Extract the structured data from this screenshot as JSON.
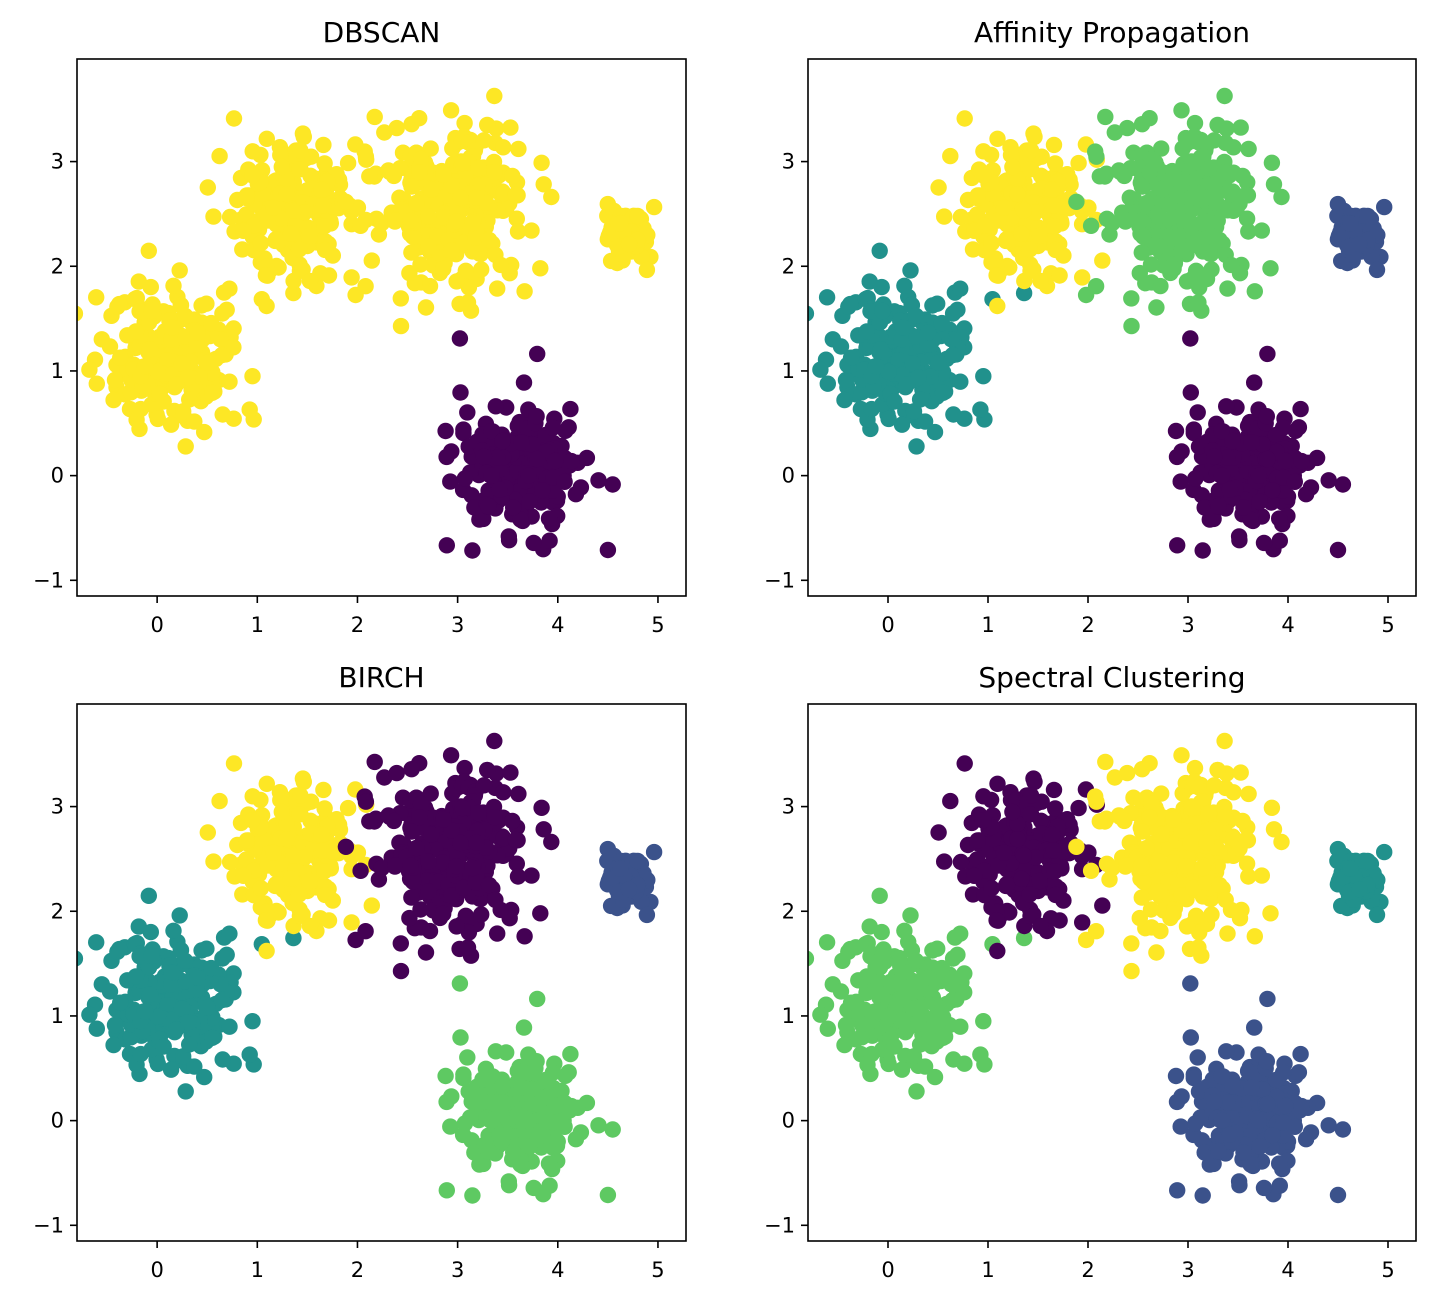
{
  "colors": {
    "c0": "#440154",
    "c1": "#3b528b",
    "c2": "#21918c",
    "c3": "#5ec962",
    "c4": "#fde725"
  },
  "chart_data": [
    {
      "type": "scatter",
      "title": "DBSCAN",
      "xlim": [
        -0.8,
        5.28
      ],
      "ylim": [
        -1.15,
        3.98
      ],
      "xticks": [
        "0",
        "1",
        "2",
        "3",
        "4",
        "5"
      ],
      "yticks": [
        "−1",
        "0",
        "1",
        "2",
        "3"
      ],
      "clusters": [
        {
          "color": "c0",
          "blob": "E"
        },
        {
          "color": "c4",
          "blob": "A"
        },
        {
          "color": "c4",
          "blob": "B"
        },
        {
          "color": "c4",
          "blob": "C"
        },
        {
          "color": "c4",
          "blob": "D"
        }
      ]
    },
    {
      "type": "scatter",
      "title": "Affinity Propagation",
      "xlim": [
        -0.8,
        5.28
      ],
      "ylim": [
        -1.15,
        3.98
      ],
      "xticks": [
        "0",
        "1",
        "2",
        "3",
        "4",
        "5"
      ],
      "yticks": [
        "−1",
        "0",
        "1",
        "2",
        "3"
      ],
      "clusters": [
        {
          "color": "c0",
          "blob": "E"
        },
        {
          "color": "c2",
          "blob": "A"
        },
        {
          "color": "c4",
          "blob": "B"
        },
        {
          "color": "c3",
          "blob": "C"
        },
        {
          "color": "c1",
          "blob": "D"
        }
      ]
    },
    {
      "type": "scatter",
      "title": "BIRCH",
      "xlim": [
        -0.8,
        5.28
      ],
      "ylim": [
        -1.15,
        3.98
      ],
      "xticks": [
        "0",
        "1",
        "2",
        "3",
        "4",
        "5"
      ],
      "yticks": [
        "−1",
        "0",
        "1",
        "2",
        "3"
      ],
      "clusters": [
        {
          "color": "c3",
          "blob": "E"
        },
        {
          "color": "c2",
          "blob": "A"
        },
        {
          "color": "c4",
          "blob": "B"
        },
        {
          "color": "c0",
          "blob": "C"
        },
        {
          "color": "c1",
          "blob": "D"
        }
      ]
    },
    {
      "type": "scatter",
      "title": "Spectral Clustering",
      "xlim": [
        -0.8,
        5.28
      ],
      "ylim": [
        -1.15,
        3.98
      ],
      "xticks": [
        "0",
        "1",
        "2",
        "3",
        "4",
        "5"
      ],
      "yticks": [
        "−1",
        "0",
        "1",
        "2",
        "3"
      ],
      "clusters": [
        {
          "color": "c1",
          "blob": "E"
        },
        {
          "color": "c3",
          "blob": "A"
        },
        {
          "color": "c0",
          "blob": "B"
        },
        {
          "color": "c4",
          "blob": "C"
        },
        {
          "color": "c2",
          "blob": "D"
        }
      ]
    }
  ],
  "blobs": {
    "A": {
      "center": [
        0.15,
        1.15
      ],
      "spread": 0.35,
      "n": 220
    },
    "B": {
      "center": [
        1.35,
        2.55
      ],
      "spread": 0.33,
      "n": 200
    },
    "C": {
      "center": [
        2.95,
        2.6
      ],
      "spread": 0.38,
      "n": 280
    },
    "D": {
      "center": [
        4.7,
        2.35
      ],
      "spread": 0.14,
      "n": 60
    },
    "E": {
      "center": [
        3.6,
        0.1
      ],
      "spread": 0.3,
      "n": 240
    }
  }
}
